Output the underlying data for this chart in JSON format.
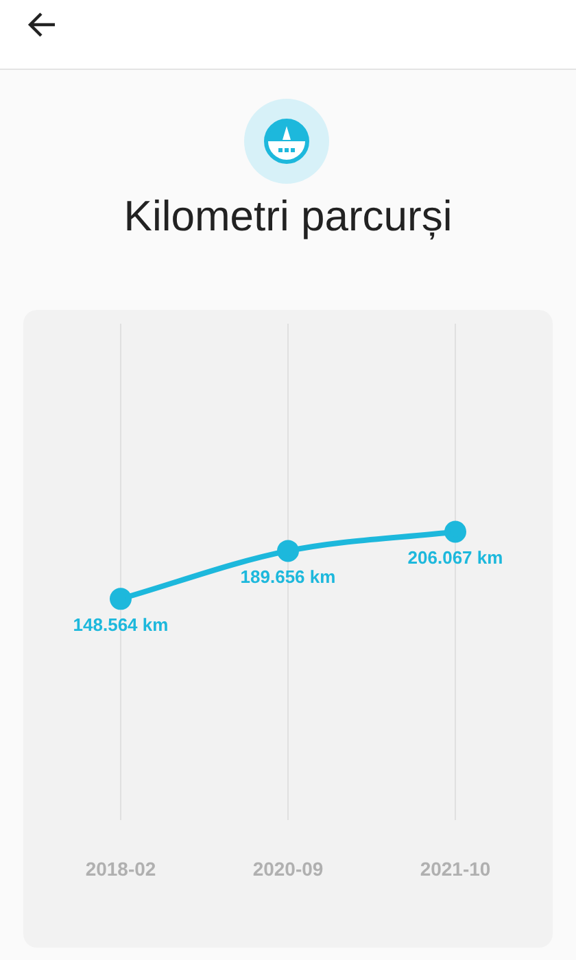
{
  "chart_data": {
    "type": "line",
    "title": "Kilometri parcurși",
    "categories": [
      "2018-02",
      "2020-09",
      "2021-10"
    ],
    "values": [
      148564,
      189656,
      206067
    ],
    "value_labels": [
      "148.564 km",
      "189.656 km",
      "206.067 km"
    ],
    "color": "#1db8dc",
    "marker": "circle",
    "grid": "x",
    "tick_labels": "x"
  }
}
